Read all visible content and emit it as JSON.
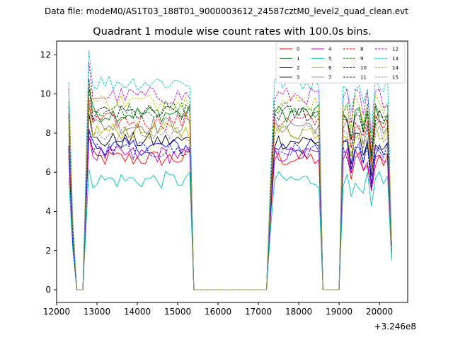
{
  "chart_data": {
    "type": "line",
    "suptitle": "Data file: modeM0/AS1T03_188T01_9000003612_24587cztM0_level2_quad_clean.evt",
    "title": "Quadrant 1 module wise count rates with 100.0s bins.",
    "xlabel": "",
    "ylabel": "",
    "x_offset_text": "+3.246e8",
    "xlim": [
      12000,
      20700
    ],
    "ylim": [
      -0.65,
      12.7
    ],
    "xticks": [
      12000,
      13000,
      14000,
      15000,
      16000,
      17000,
      18000,
      19000,
      20000
    ],
    "xtick_labels": [
      "12000",
      "13000",
      "14000",
      "15000",
      "16000",
      "17000",
      "18000",
      "19000",
      "20000"
    ],
    "yticks": [
      0,
      2,
      4,
      6,
      8,
      10,
      12
    ],
    "ytick_labels": [
      "0",
      "2",
      "4",
      "6",
      "8",
      "10",
      "12"
    ],
    "legend_position": "top-right",
    "legend_columns": 4,
    "segments": [
      {
        "x_start": 12300,
        "x_end": 12500,
        "comment": "rise/fall edges"
      }
    ],
    "time_profile": {
      "x": [
        12300,
        12400,
        12500,
        12550,
        12650,
        12800,
        12900,
        13000,
        13100,
        13200,
        13300,
        13400,
        13500,
        13600,
        13700,
        13800,
        13900,
        14000,
        14100,
        14200,
        14300,
        14400,
        14500,
        14600,
        14700,
        14800,
        14900,
        15000,
        15100,
        15200,
        15300,
        15400,
        15500,
        17200,
        17300,
        17400,
        17500,
        17600,
        17700,
        17800,
        17900,
        18000,
        18100,
        18200,
        18300,
        18400,
        18500,
        18600,
        18650,
        19000,
        19100,
        19200,
        19300,
        19400,
        19500,
        19600,
        19700,
        19800,
        19900,
        20000,
        20100,
        20200,
        20300
      ],
      "shape": [
        1.0,
        0.35,
        0.0,
        0.0,
        0.0,
        1.15,
        1.0,
        1.0,
        1.0,
        1.0,
        1.0,
        1.0,
        1.0,
        1.0,
        1.0,
        1.0,
        1.0,
        1.0,
        1.0,
        1.0,
        1.0,
        1.0,
        1.0,
        1.0,
        1.0,
        1.0,
        1.0,
        1.0,
        1.0,
        1.0,
        1.0,
        0.0,
        0.0,
        0.0,
        0.55,
        1.0,
        1.0,
        1.0,
        1.0,
        1.0,
        1.0,
        1.0,
        1.0,
        1.0,
        1.0,
        1.0,
        1.0,
        0.0,
        0.0,
        0.0,
        1.0,
        1.0,
        0.85,
        1.0,
        1.0,
        0.9,
        1.0,
        0.75,
        1.0,
        1.0,
        0.95,
        1.0,
        0.25
      ]
    },
    "series": [
      {
        "name": "0",
        "color": "#ff0000",
        "dash": "solid",
        "level": 6.7
      },
      {
        "name": "1",
        "color": "#008000",
        "dash": "solid",
        "level": 9.0
      },
      {
        "name": "2",
        "color": "#0000ff",
        "dash": "solid",
        "level": 7.3
      },
      {
        "name": "3",
        "color": "#000000",
        "dash": "solid",
        "level": 7.6
      },
      {
        "name": "4",
        "color": "#bf00bf",
        "dash": "solid",
        "level": 6.9
      },
      {
        "name": "5",
        "color": "#00bfbf",
        "dash": "solid",
        "level": 5.6
      },
      {
        "name": "6",
        "color": "#bfbf00",
        "dash": "solid",
        "level": 8.1
      },
      {
        "name": "7",
        "color": "#808080",
        "dash": "solid",
        "level": 8.4
      },
      {
        "name": "8",
        "color": "#ff0000",
        "dash": "dashed",
        "level": 8.6
      },
      {
        "name": "9",
        "color": "#008000",
        "dash": "dashed",
        "level": 9.2
      },
      {
        "name": "10",
        "color": "#0000ff",
        "dash": "dashed",
        "level": 7.1
      },
      {
        "name": "11",
        "color": "#000000",
        "dash": "dashed",
        "level": 9.0
      },
      {
        "name": "12",
        "color": "#bf00bf",
        "dash": "dashed",
        "level": 9.9
      },
      {
        "name": "13",
        "color": "#00bfbf",
        "dash": "dashed",
        "level": 10.6
      },
      {
        "name": "14",
        "color": "#bfbf00",
        "dash": "dashed",
        "level": 9.6
      },
      {
        "name": "15",
        "color": "#808080",
        "dash": "dashed",
        "level": 8.0
      }
    ]
  }
}
